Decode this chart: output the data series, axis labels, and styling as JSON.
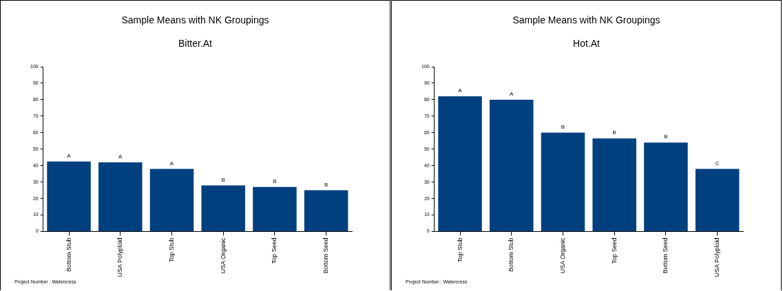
{
  "chart_data": [
    {
      "type": "bar",
      "title": "Sample Means with NK Groupings",
      "subtitle": "Bitter.At",
      "categories": [
        "Bottom Stub",
        "USA Polyploid",
        "Top Stub",
        "USA Organic",
        "Top Seed",
        "Bottom Seed"
      ],
      "values": [
        42.5,
        42,
        38,
        28,
        27,
        25
      ],
      "color": "#00407f",
      "ylim": [
        0,
        100
      ],
      "yticks": [
        0,
        10,
        20,
        30,
        40,
        50,
        60,
        70,
        80,
        90,
        100
      ],
      "value_labels": [
        "A",
        "A",
        "A",
        "B",
        "B",
        "B"
      ],
      "annotations": [
        "Project Number : Watercress"
      ]
    },
    {
      "type": "bar",
      "title": "Sample Means with NK Groupings",
      "subtitle": "Hot.At",
      "categories": [
        "Top Stub",
        "Bottom Stub",
        "USA Organic",
        "Top Seed",
        "Bottom Seed",
        "USA Polyploid"
      ],
      "values": [
        82,
        80,
        60,
        56.5,
        54,
        38
      ],
      "color": "#00407f",
      "ylim": [
        0,
        100
      ],
      "yticks": [
        0,
        10,
        20,
        30,
        40,
        50,
        60,
        70,
        80,
        90,
        100
      ],
      "value_labels": [
        "A",
        "A",
        "B",
        "B",
        "B",
        "C"
      ],
      "annotations": [
        "Project Number : Watercress"
      ]
    }
  ]
}
